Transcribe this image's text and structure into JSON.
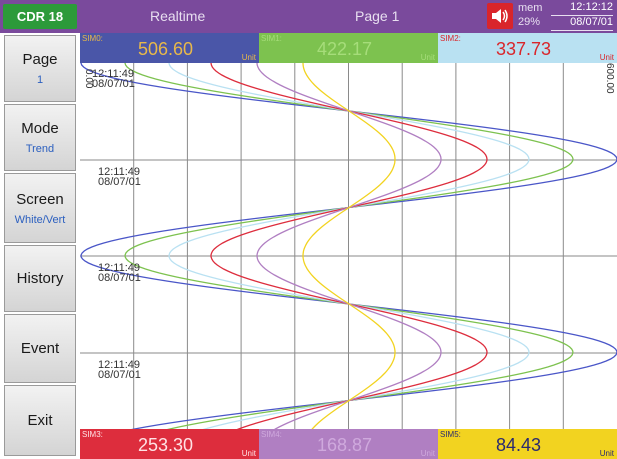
{
  "header": {
    "device": "CDR 18",
    "mode": "Realtime",
    "page": "Page 1",
    "mem_label": "mem",
    "mem_value": "29%",
    "time": "12:12:12",
    "date": "08/07/01"
  },
  "menu": [
    {
      "label": "Page",
      "sub": "1"
    },
    {
      "label": "Mode",
      "sub": "Trend"
    },
    {
      "label": "Screen",
      "sub": "White/Vert"
    },
    {
      "label": "History",
      "sub": ""
    },
    {
      "label": "Event",
      "sub": ""
    },
    {
      "label": "Exit",
      "sub": ""
    }
  ],
  "channels_top": [
    {
      "tag": "SIM0:",
      "value": "506.60",
      "unit": "Unit",
      "bg": "#4a56a8",
      "fg": "#e8b84a"
    },
    {
      "tag": "SIM1:",
      "value": "422.17",
      "unit": "Unit",
      "bg": "#7dc24f",
      "fg": "#a6dd7a"
    },
    {
      "tag": "SIM2:",
      "value": "337.73",
      "unit": "Unit",
      "bg": "#b9e1f2",
      "fg": "#d9262b"
    }
  ],
  "channels_bottom": [
    {
      "tag": "SIM3:",
      "value": "253.30",
      "unit": "Unit",
      "bg": "#dd2d3d",
      "fg": "#ffe2e5"
    },
    {
      "tag": "SIM4:",
      "value": "168.87",
      "unit": "Unit",
      "bg": "#b07fc2",
      "fg": "#cfa9dd"
    },
    {
      "tag": "SIM5:",
      "value": "84.43",
      "unit": "Unit",
      "bg": "#f2d320",
      "fg": "#2a2a70"
    }
  ],
  "chart": {
    "scale_min": "0.00",
    "scale_max": "600.00",
    "stamps": [
      {
        "time": "12:11:49",
        "date": "08/07/01"
      },
      {
        "time": "12:11:49",
        "date": "08/07/01"
      },
      {
        "time": "12:11:49",
        "date": "08/07/01"
      },
      {
        "time": "12:11:49",
        "date": "08/07/01"
      }
    ],
    "trace_colors": [
      "#4a56c8",
      "#7dc24f",
      "#b9e1f2",
      "#dd2d3d",
      "#b07fc2",
      "#f2d320"
    ],
    "trace_amplitudes": [
      268,
      224,
      180,
      138,
      92,
      46
    ]
  },
  "icons": {
    "speaker": "speaker-icon"
  }
}
